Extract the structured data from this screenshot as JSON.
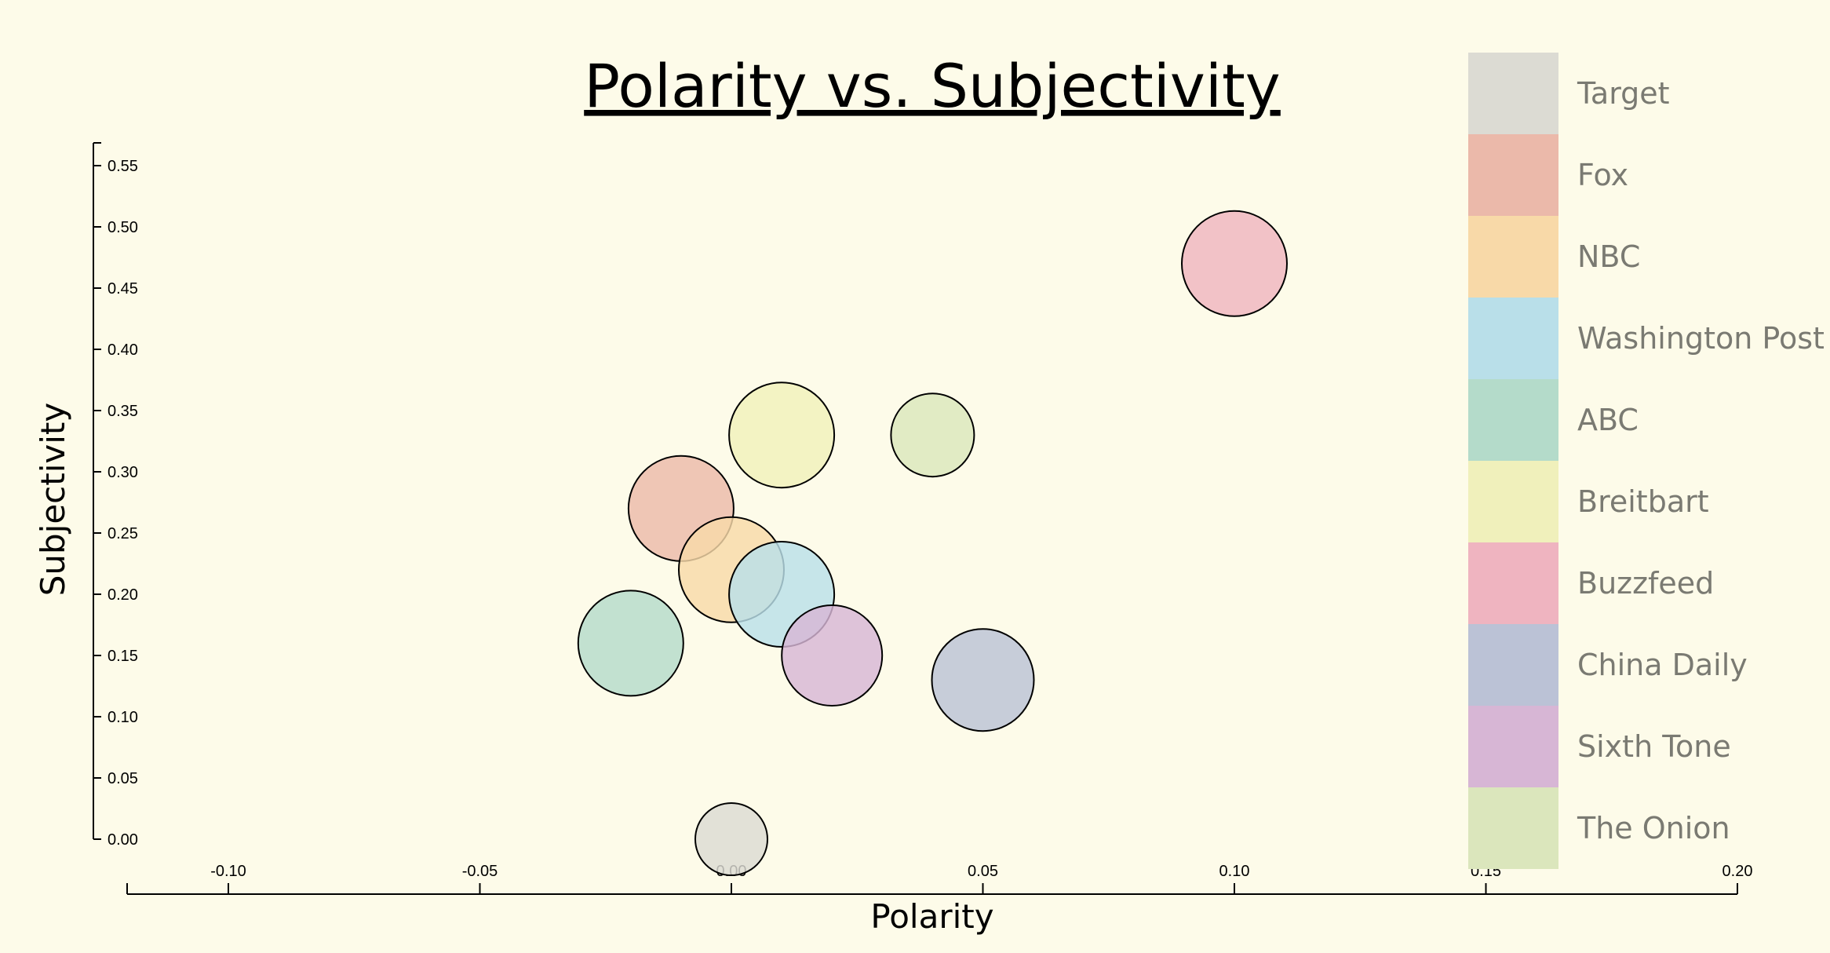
{
  "chart_data": {
    "type": "scatter",
    "title": "Polarity vs. Subjectivity",
    "xlabel": "Polarity",
    "ylabel": "Subjectivity",
    "xlim": [
      -0.12,
      0.2
    ],
    "ylim": [
      0.0,
      0.57
    ],
    "x_ticks": [
      "-0.10",
      "-0.05",
      "0.00",
      "0.05",
      "0.10",
      "0.15",
      "0.20"
    ],
    "y_ticks": [
      "0.00",
      "0.05",
      "0.10",
      "0.15",
      "0.20",
      "0.25",
      "0.30",
      "0.35",
      "0.40",
      "0.45",
      "0.50",
      "0.55"
    ],
    "legend_position": "right",
    "grid": false,
    "series": [
      {
        "name": "Target",
        "x": 0.0,
        "y": 0.0,
        "size": 0.46,
        "color": "#dcdbd3"
      },
      {
        "name": "Fox",
        "x": -0.01,
        "y": 0.27,
        "size": 0.67,
        "color": "#ebb9aa"
      },
      {
        "name": "NBC",
        "x": 0.0,
        "y": 0.22,
        "size": 0.67,
        "color": "#f8d9a8"
      },
      {
        "name": "Washington Post",
        "x": 0.01,
        "y": 0.2,
        "size": 0.67,
        "color": "#b9dfe9"
      },
      {
        "name": "ABC",
        "x": -0.02,
        "y": 0.16,
        "size": 0.67,
        "color": "#b4dbca"
      },
      {
        "name": "Breitbart",
        "x": 0.01,
        "y": 0.33,
        "size": 0.67,
        "color": "#f0f0bb"
      },
      {
        "name": "Buzzfeed",
        "x": 0.1,
        "y": 0.47,
        "size": 0.67,
        "color": "#efb4c0"
      },
      {
        "name": "China Daily",
        "x": 0.05,
        "y": 0.13,
        "size": 0.65,
        "color": "#bbc2d6"
      },
      {
        "name": "Sixth Tone",
        "x": 0.02,
        "y": 0.15,
        "size": 0.64,
        "color": "#d7b6d5"
      },
      {
        "name": "The Onion",
        "x": 0.04,
        "y": 0.33,
        "size": 0.53,
        "color": "#dbe6bc"
      }
    ]
  }
}
